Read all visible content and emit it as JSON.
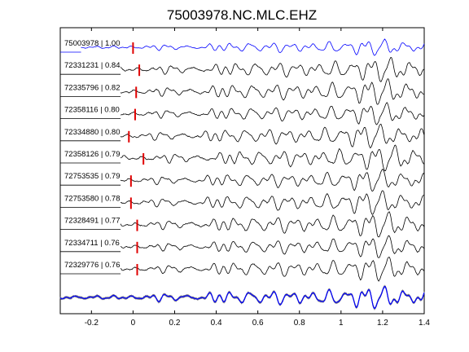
{
  "chart_data": {
    "type": "line",
    "title": "75003978.NC.MLC.EHZ",
    "xlabel": "",
    "ylabel": "",
    "xlim": [
      -0.35,
      1.4
    ],
    "x_ticks": [
      "-0.2",
      "0",
      "0.2",
      "0.4",
      "0.6",
      "0.8",
      "1",
      "1.2",
      "1.4"
    ],
    "x_tick_values": [
      -0.2,
      0,
      0.2,
      0.4,
      0.6,
      0.8,
      1.0,
      1.2,
      1.4
    ],
    "grid": false,
    "series": [
      {
        "name": "75003978 | 1.00",
        "pick_time": 0.0,
        "color": "#0000ff",
        "reference": true
      },
      {
        "name": "72331231 | 0.84",
        "pick_time": 0.03
      },
      {
        "name": "72335796 | 0.82",
        "pick_time": 0.015
      },
      {
        "name": "72358116 | 0.80",
        "pick_time": 0.01
      },
      {
        "name": "72334880 | 0.80",
        "pick_time": -0.02
      },
      {
        "name": "72358126 | 0.79",
        "pick_time": 0.05
      },
      {
        "name": "72753535 | 0.79",
        "pick_time": -0.01
      },
      {
        "name": "72753580 | 0.78",
        "pick_time": -0.01
      },
      {
        "name": "72328491 | 0.77",
        "pick_time": 0.02
      },
      {
        "name": "72334711 | 0.76",
        "pick_time": 0.02
      },
      {
        "name": "72329776 | 0.76",
        "pick_time": 0.02
      }
    ],
    "stack": {
      "overlay_color": "#808080",
      "reference_color": "#0000ff"
    },
    "pick_color": "#e00000",
    "trace_color": "#000000"
  }
}
